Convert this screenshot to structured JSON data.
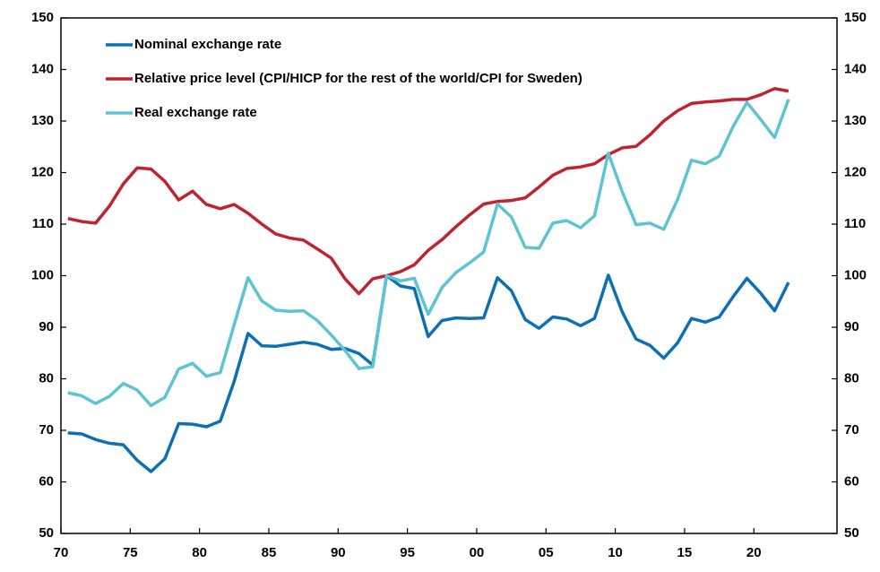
{
  "chart_data": {
    "type": "line",
    "x": [
      1970.5,
      1971.5,
      1972.5,
      1973.5,
      1974.5,
      1975.5,
      1976.5,
      1977.5,
      1978.5,
      1979.5,
      1980.5,
      1981.5,
      1982.5,
      1983.5,
      1984.5,
      1985.5,
      1986.5,
      1987.5,
      1988.5,
      1989.5,
      1990.5,
      1991.5,
      1992.5,
      1993.5,
      1994.5,
      1995.5,
      1996.5,
      1997.5,
      1998.5,
      1999.5,
      2000.5,
      2001.5,
      2002.5,
      2003.5,
      2004.5,
      2005.5,
      2006.5,
      2007.5,
      2008.5,
      2009.5,
      2010.5,
      2011.5,
      2012.5,
      2013.5,
      2014.5,
      2015.5,
      2016.5,
      2017.5,
      2018.5,
      2019.5,
      2020.5,
      2021.5,
      2022.5
    ],
    "series": [
      {
        "name": "Nominal exchange rate",
        "color": "#0e70b4",
        "values": [
          69.5,
          69.3,
          68.2,
          67.5,
          67.2,
          64.2,
          62.0,
          64.5,
          71.3,
          71.2,
          70.7,
          71.8,
          79.5,
          88.8,
          86.4,
          86.3,
          86.7,
          87.1,
          86.7,
          85.7,
          85.9,
          84.9,
          82.7,
          100.0,
          98.0,
          97.5,
          88.2,
          91.3,
          91.8,
          91.7,
          91.8,
          99.6,
          97.1,
          91.5,
          89.8,
          92.0,
          91.6,
          90.3,
          91.7,
          100.1,
          93.0,
          87.7,
          86.5,
          84.0,
          87.0,
          91.7,
          91.0,
          92.0,
          95.9,
          99.5,
          96.6,
          93.2,
          98.7
        ]
      },
      {
        "name": "Relative price level (CPI/HICP for the rest of the world/CPI for Sweden)",
        "color": "#c0222f",
        "values": [
          111.1,
          110.5,
          110.2,
          113.5,
          117.8,
          120.9,
          120.7,
          118.3,
          114.7,
          116.4,
          113.8,
          113.0,
          113.8,
          112.1,
          110.0,
          108.1,
          107.3,
          106.9,
          105.2,
          103.4,
          99.4,
          96.5,
          99.4,
          100.0,
          100.8,
          102.1,
          104.9,
          107.0,
          109.5,
          111.8,
          113.9,
          114.4,
          114.6,
          115.1,
          117.2,
          119.5,
          120.8,
          121.1,
          121.7,
          123.5,
          124.8,
          125.1,
          127.3,
          130.0,
          132.0,
          133.4,
          133.7,
          133.9,
          134.2,
          134.2,
          135.1,
          136.3,
          135.8
        ]
      },
      {
        "name": "Real exchange rate",
        "color": "#5ec3d2",
        "values": [
          77.3,
          76.7,
          75.2,
          76.6,
          79.1,
          77.8,
          74.8,
          76.4,
          81.9,
          83.0,
          80.5,
          81.2,
          90.5,
          99.6,
          95.1,
          93.3,
          93.1,
          93.2,
          91.3,
          88.5,
          85.5,
          82.0,
          82.3,
          100.0,
          99.0,
          99.5,
          92.5,
          97.7,
          100.6,
          102.5,
          104.6,
          113.9,
          111.4,
          105.5,
          105.3,
          110.2,
          110.7,
          109.3,
          111.6,
          123.8,
          116.3,
          109.9,
          110.2,
          109.0,
          114.8,
          122.4,
          121.7,
          123.2,
          128.9,
          133.6,
          130.3,
          126.8,
          134.2
        ]
      }
    ],
    "xlim": [
      1970,
      2026
    ],
    "xticks": [
      {
        "value": 1970,
        "label": "70"
      },
      {
        "value": 1975,
        "label": "75"
      },
      {
        "value": 1980,
        "label": "80"
      },
      {
        "value": 1985,
        "label": "85"
      },
      {
        "value": 1990,
        "label": "90"
      },
      {
        "value": 1995,
        "label": "95"
      },
      {
        "value": 2000,
        "label": "00"
      },
      {
        "value": 2005,
        "label": "05"
      },
      {
        "value": 2010,
        "label": "10"
      },
      {
        "value": 2015,
        "label": "15"
      },
      {
        "value": 2020,
        "label": "20"
      }
    ],
    "ylim": [
      50,
      150
    ],
    "yticks": [
      50,
      60,
      70,
      80,
      90,
      100,
      110,
      120,
      130,
      140,
      150
    ],
    "y2lim": [
      50,
      150
    ],
    "y2ticks": [
      50,
      60,
      70,
      80,
      90,
      100,
      110,
      120,
      130,
      140,
      150
    ],
    "legend": "upper left"
  }
}
